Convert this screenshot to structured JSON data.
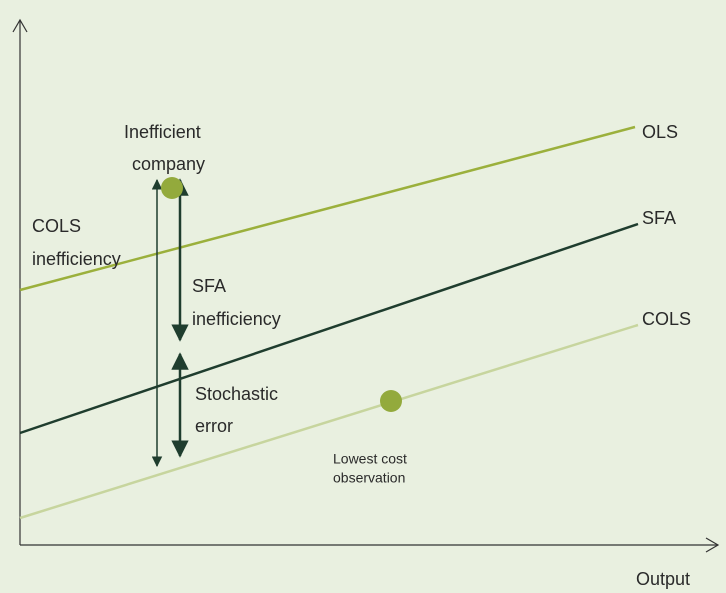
{
  "lines": [
    {
      "label": "OLS"
    },
    {
      "label": "SFA"
    },
    {
      "label": "COLS"
    }
  ],
  "points": [
    {
      "label": [
        "Inefficient",
        "company"
      ]
    },
    {
      "label": [
        "Lowest cost",
        "observation"
      ]
    }
  ],
  "measures": [
    {
      "label": [
        "COLS",
        "inefficiency"
      ]
    },
    {
      "label": [
        "SFA",
        "inefficiency"
      ]
    },
    {
      "label": [
        "Stochastic",
        "error"
      ]
    }
  ],
  "x_axis": {
    "label": "Output"
  }
}
